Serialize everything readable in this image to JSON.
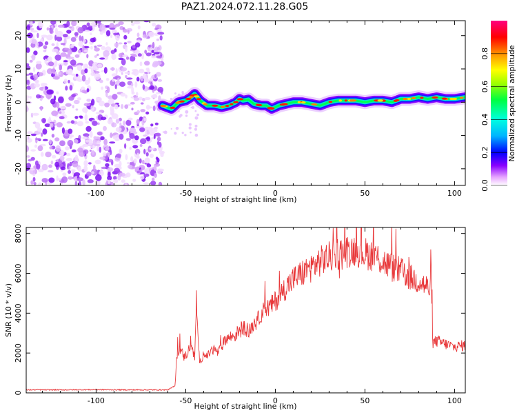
{
  "title": "PAZ1.2024.072.11.28.G05",
  "chart_data": [
    {
      "type": "heatmap",
      "xlabel": "Height of straight line (km)",
      "ylabel": "Frequency (Hz)",
      "xlim": [
        -139,
        106
      ],
      "ylim": [
        -25,
        24.5
      ],
      "xticks": [
        -100,
        -50,
        0,
        50,
        100
      ],
      "yticks": [
        -20,
        -10,
        0,
        10,
        20
      ],
      "colorbar": {
        "label": "Normalized spectral amplitude",
        "range": [
          0,
          1
        ],
        "ticks": [
          "0.0",
          "0.2",
          "0.4",
          "0.6",
          "0.8"
        ]
      },
      "noise_region_x": [
        -139,
        -63
      ],
      "ridge": {
        "x": [
          -63,
          -58,
          -54,
          -50,
          -47,
          -45,
          -42,
          -38,
          -34,
          -30,
          -26,
          -22,
          -20,
          -18,
          -15,
          -12,
          -8,
          -5,
          -2,
          2,
          6,
          10,
          15,
          20,
          25,
          30,
          35,
          40,
          45,
          50,
          55,
          60,
          65,
          70,
          75,
          80,
          85,
          90,
          95,
          100,
          106
        ],
        "frequency": [
          -1,
          -2,
          0,
          0.5,
          1.5,
          2.5,
          0.5,
          -1,
          -1,
          -1.5,
          -1,
          0,
          1,
          0.5,
          0.8,
          -0.5,
          -1,
          -1,
          -2,
          -1,
          -0.5,
          0,
          0,
          -0.5,
          -1,
          0,
          0.5,
          0.5,
          0.5,
          0,
          0.5,
          0.5,
          0,
          1,
          1,
          1.5,
          1,
          1.5,
          1,
          1,
          1.5
        ]
      }
    },
    {
      "type": "line",
      "xlabel": "Height of straight line (km)",
      "ylabel": "SNR (10 * v/v)",
      "xlim": [
        -139,
        106
      ],
      "ylim": [
        0,
        8300
      ],
      "xticks": [
        -100,
        -50,
        0,
        50,
        100
      ],
      "yticks": [
        0,
        2000,
        4000,
        6000,
        8000
      ],
      "color": "#e8383a",
      "series": [
        {
          "x": [
            -139,
            -120,
            -100,
            -80,
            -60,
            -56,
            -55,
            -53,
            -51,
            -49,
            -47,
            -45,
            -44,
            -43,
            -42,
            -40,
            -38,
            -36,
            -34,
            -32,
            -30,
            -28,
            -25,
            -22,
            -20,
            -17,
            -15,
            -12,
            -10,
            -8,
            -5,
            -2,
            0,
            5,
            10,
            15,
            20,
            25,
            30,
            35,
            40,
            45,
            50,
            55,
            60,
            65,
            70,
            75,
            80,
            85,
            87,
            88,
            90,
            95,
            100,
            106
          ],
          "values": [
            150,
            150,
            160,
            150,
            150,
            350,
            1900,
            2200,
            1800,
            2000,
            2500,
            1700,
            4800,
            2200,
            1500,
            2000,
            1800,
            2100,
            2200,
            2000,
            2300,
            2700,
            2800,
            2900,
            3200,
            3300,
            3000,
            3500,
            3600,
            4000,
            4200,
            4400,
            4600,
            5200,
            5700,
            6000,
            6300,
            6600,
            6800,
            7000,
            7100,
            7200,
            7000,
            6900,
            6600,
            6300,
            6100,
            5800,
            5600,
            5300,
            5100,
            2500,
            2600,
            2450,
            2300,
            2400
          ]
        }
      ]
    }
  ]
}
